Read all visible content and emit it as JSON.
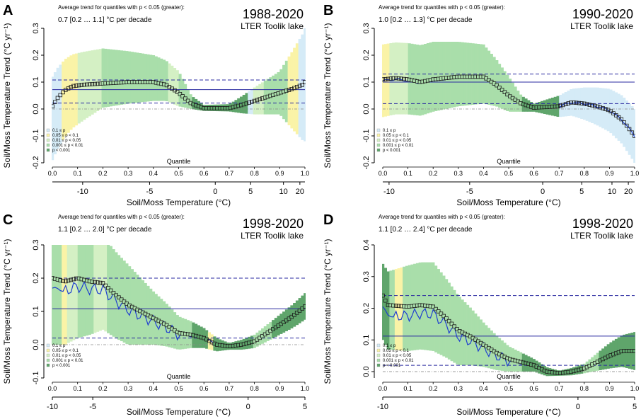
{
  "figure": {
    "legend_labels": [
      "0.1 ≤ p",
      "0.05 ≤ p < 0.1",
      "0.01 ≤ p < 0.05",
      "0.001 ≤ p < 0.01",
      "p < 0.001"
    ],
    "legend_colors": [
      "#d5ebf7",
      "#faf3a7",
      "#d4f0c4",
      "#a9deaa",
      "#5fa56b"
    ],
    "marker_color": "#1a1a1a",
    "line_color": "#1f3fd0",
    "ref_line_color": "#2a2aa0"
  },
  "chart_data": [
    {
      "type": "line",
      "panel": "A",
      "title": "1988-2020",
      "site": "LTER Toolik lake",
      "avg_label": "Average trend for quantiles with p < 0.05 (greater):",
      "avg_value": "0.7  [0.2 … 1.1]  °C per decade",
      "ylabel": "Soil/Moss Temperature Trend (°C yr⁻¹)",
      "xlabel": "Soil/Moss Temperature (°C)",
      "quantile_label": "Quantile",
      "ylim": [
        -0.2,
        0.3
      ],
      "yticks": [
        "-0.2",
        "-0.1",
        "0.0",
        "0.1",
        "0.2",
        "0.3"
      ],
      "quantile_ticks": [
        "0.0",
        "0.1",
        "0.2",
        "0.3",
        "0.4",
        "0.5",
        "0.6",
        "0.7",
        "0.8",
        "0.9",
        "1.0"
      ],
      "temp_ticks": [
        {
          "label": "-10",
          "q": 0.12
        },
        {
          "label": "-5",
          "q": 0.385
        },
        {
          "label": "0",
          "q": 0.645
        },
        {
          "label": "5",
          "q": 0.785
        },
        {
          "label": "10",
          "q": 0.915
        },
        {
          "label": "20",
          "q": 0.98
        }
      ],
      "avg_trend": 0.072,
      "ci_low": 0.022,
      "ci_high": 0.108,
      "anchors": [
        [
          0.0,
          0.01
        ],
        [
          0.02,
          0.04
        ],
        [
          0.05,
          0.07
        ],
        [
          0.08,
          0.085
        ],
        [
          0.12,
          0.09
        ],
        [
          0.2,
          0.095
        ],
        [
          0.3,
          0.1
        ],
        [
          0.4,
          0.1
        ],
        [
          0.45,
          0.09
        ],
        [
          0.5,
          0.06
        ],
        [
          0.55,
          0.02
        ],
        [
          0.6,
          0.003
        ],
        [
          0.7,
          0.003
        ],
        [
          0.75,
          0.015
        ],
        [
          0.8,
          0.03
        ],
        [
          0.85,
          0.045
        ],
        [
          0.9,
          0.06
        ],
        [
          0.95,
          0.075
        ],
        [
          0.99,
          0.09
        ],
        [
          1.0,
          0.1
        ]
      ],
      "band": [
        [
          0.0,
          0.11,
          0.2
        ],
        [
          0.2,
          0.13,
          0.09
        ],
        [
          0.4,
          0.1,
          0.07
        ],
        [
          0.5,
          0.08,
          0.05
        ],
        [
          0.55,
          0.03,
          0.02
        ],
        [
          0.6,
          0.012,
          0.01
        ],
        [
          0.7,
          0.015,
          0.012
        ],
        [
          0.8,
          0.05,
          0.05
        ],
        [
          0.9,
          0.08,
          0.08
        ],
        [
          1.0,
          0.2,
          0.22
        ]
      ],
      "pclass": [
        [
          0.0,
          0
        ],
        [
          0.04,
          1
        ],
        [
          0.1,
          2
        ],
        [
          0.2,
          3
        ],
        [
          0.46,
          2
        ],
        [
          0.5,
          3
        ],
        [
          0.55,
          4
        ],
        [
          0.77,
          0
        ],
        [
          0.8,
          2
        ],
        [
          0.84,
          3
        ],
        [
          0.93,
          1
        ],
        [
          0.97,
          0
        ]
      ],
      "trend_line": false,
      "n": 96
    },
    {
      "type": "line",
      "panel": "B",
      "title": "1990-2020",
      "site": "LTER Toolik lake",
      "avg_label": "Average trend for quantiles with p < 0.05 (greater):",
      "avg_value": "1.0  [0.2 … 1.3]  °C per decade",
      "ylabel": "Soil/Moss Temperature Trend (°C yr⁻¹)",
      "xlabel": "Soil/Moss Temperature (°C)",
      "quantile_label": "Quantile",
      "ylim": [
        -0.2,
        0.3
      ],
      "yticks": [
        "-0.2",
        "-0.1",
        "0.0",
        "0.1",
        "0.2",
        "0.3"
      ],
      "quantile_ticks": [
        "0.0",
        "0.1",
        "0.2",
        "0.3",
        "0.4",
        "0.5",
        "0.6",
        "0.7",
        "0.8",
        "0.9",
        "1.0"
      ],
      "temp_ticks": [
        {
          "label": "-10",
          "q": 0.025
        },
        {
          "label": "-5",
          "q": 0.345
        },
        {
          "label": "0",
          "q": 0.635
        },
        {
          "label": "5",
          "q": 0.79
        },
        {
          "label": "10",
          "q": 0.91
        },
        {
          "label": "20",
          "q": 0.975
        }
      ],
      "avg_trend": 0.1,
      "ci_low": 0.02,
      "ci_high": 0.13,
      "anchors": [
        [
          0.0,
          0.11
        ],
        [
          0.05,
          0.115
        ],
        [
          0.1,
          0.11
        ],
        [
          0.15,
          0.1
        ],
        [
          0.2,
          0.11
        ],
        [
          0.3,
          0.12
        ],
        [
          0.4,
          0.12
        ],
        [
          0.45,
          0.09
        ],
        [
          0.5,
          0.05
        ],
        [
          0.55,
          0.02
        ],
        [
          0.6,
          0.005
        ],
        [
          0.7,
          0.01
        ],
        [
          0.75,
          0.025
        ],
        [
          0.8,
          0.02
        ],
        [
          0.85,
          0.01
        ],
        [
          0.9,
          -0.005
        ],
        [
          0.95,
          -0.04
        ],
        [
          1.0,
          -0.1
        ]
      ],
      "band": [
        [
          0.0,
          0.13,
          0.14
        ],
        [
          0.2,
          0.14,
          0.12
        ],
        [
          0.4,
          0.12,
          0.1
        ],
        [
          0.5,
          0.07,
          0.06
        ],
        [
          0.55,
          0.03,
          0.03
        ],
        [
          0.6,
          0.015,
          0.015
        ],
        [
          0.7,
          0.04,
          0.04
        ],
        [
          0.8,
          0.06,
          0.06
        ],
        [
          0.9,
          0.08,
          0.08
        ],
        [
          1.0,
          0.1,
          0.1
        ]
      ],
      "pclass": [
        [
          0.0,
          1
        ],
        [
          0.03,
          2
        ],
        [
          0.1,
          3
        ],
        [
          0.2,
          3
        ],
        [
          0.35,
          3
        ],
        [
          0.5,
          3
        ],
        [
          0.55,
          4
        ],
        [
          0.62,
          4
        ],
        [
          0.7,
          0
        ]
      ],
      "trend_line": true,
      "line_offset": -0.005,
      "n": 96
    },
    {
      "type": "line",
      "panel": "C",
      "title": "1998-2020",
      "site": "LTER Toolik lake",
      "avg_label": "Average trend for quantiles with p < 0.05 (greater):",
      "avg_value": "1.1  [0.2 … 2.0]  °C per decade",
      "ylabel": "Soil/Moss Temperature Trend (°C yr⁻¹)",
      "xlabel": "Soil/Moss Temperature (°C)",
      "quantile_label": "Quantile",
      "ylim": [
        -0.1,
        0.3
      ],
      "yticks": [
        "-0.1",
        "0.0",
        "0.1",
        "0.2",
        "0.3"
      ],
      "quantile_ticks": [
        "0.0",
        "0.1",
        "0.2",
        "0.3",
        "0.4",
        "0.5",
        "0.6",
        "0.7",
        "0.8",
        "0.9",
        "1.0"
      ],
      "temp_ticks": [
        {
          "label": "-10",
          "q": 0.0
        },
        {
          "label": "-5",
          "q": 0.16
        },
        {
          "label": "0",
          "q": 0.775
        },
        {
          "label": "5",
          "q": 1.0
        }
      ],
      "avg_trend": 0.108,
      "ci_low": 0.02,
      "ci_high": 0.2,
      "anchors": [
        [
          0.0,
          0.2
        ],
        [
          0.05,
          0.19
        ],
        [
          0.1,
          0.2
        ],
        [
          0.15,
          0.19
        ],
        [
          0.2,
          0.185
        ],
        [
          0.25,
          0.15
        ],
        [
          0.3,
          0.12
        ],
        [
          0.35,
          0.1
        ],
        [
          0.4,
          0.08
        ],
        [
          0.45,
          0.06
        ],
        [
          0.5,
          0.035
        ],
        [
          0.55,
          0.03
        ],
        [
          0.6,
          0.02
        ],
        [
          0.65,
          0.0
        ],
        [
          0.7,
          -0.005
        ],
        [
          0.75,
          0.0
        ],
        [
          0.8,
          0.01
        ],
        [
          0.85,
          0.035
        ],
        [
          0.9,
          0.06
        ],
        [
          0.95,
          0.085
        ],
        [
          1.0,
          0.115
        ]
      ],
      "band": [
        [
          0.0,
          0.15,
          0.2
        ],
        [
          0.1,
          0.14,
          0.18
        ],
        [
          0.2,
          0.14,
          0.14
        ],
        [
          0.3,
          0.12,
          0.12
        ],
        [
          0.4,
          0.08,
          0.08
        ],
        [
          0.5,
          0.05,
          0.05
        ],
        [
          0.6,
          0.03,
          0.03
        ],
        [
          0.7,
          0.01,
          0.01
        ],
        [
          0.8,
          0.02,
          0.02
        ],
        [
          0.9,
          0.03,
          0.03
        ],
        [
          1.0,
          0.04,
          0.04
        ]
      ],
      "pclass": [
        [
          0.0,
          3
        ],
        [
          0.04,
          1
        ],
        [
          0.06,
          2
        ],
        [
          0.1,
          3
        ],
        [
          0.16,
          2
        ],
        [
          0.22,
          3
        ],
        [
          0.55,
          4
        ],
        [
          0.62,
          1
        ],
        [
          0.64,
          4
        ],
        [
          0.8,
          3
        ],
        [
          0.87,
          4
        ]
      ],
      "trend_line": true,
      "line_offset": -0.03,
      "n": 96
    },
    {
      "type": "line",
      "panel": "D",
      "title": "1998-2020",
      "site": "LTER Toolik lake",
      "avg_label": "Average trend for quantiles with p < 0.05 (greater):",
      "avg_value": "1.1  [0.2 … 2.4]  °C per decade",
      "ylabel": "Soil/Moss Temperature Trend (°C yr⁻¹)",
      "xlabel": "Soil/Moss Temperature (°C)",
      "quantile_label": "Quantile",
      "ylim": [
        -0.02,
        0.4
      ],
      "yticks": [
        "0.0",
        "0.1",
        "0.2",
        "0.3",
        "0.4"
      ],
      "quantile_ticks": [
        "0.0",
        "0.1",
        "0.2",
        "0.3",
        "0.4",
        "0.5",
        "0.6",
        "0.7",
        "0.8",
        "0.9",
        "1.0"
      ],
      "temp_ticks": [
        {
          "label": "-10",
          "q": 0.0
        },
        {
          "label": "0",
          "q": 0.775
        },
        {
          "label": "5",
          "q": 1.0
        }
      ],
      "avg_trend": 0.112,
      "ci_low": 0.02,
      "ci_high": 0.24,
      "anchors": [
        [
          0.0,
          0.24
        ],
        [
          0.02,
          0.21
        ],
        [
          0.1,
          0.205
        ],
        [
          0.15,
          0.21
        ],
        [
          0.2,
          0.205
        ],
        [
          0.25,
          0.17
        ],
        [
          0.3,
          0.13
        ],
        [
          0.35,
          0.11
        ],
        [
          0.4,
          0.085
        ],
        [
          0.45,
          0.06
        ],
        [
          0.5,
          0.04
        ],
        [
          0.55,
          0.03
        ],
        [
          0.6,
          0.02
        ],
        [
          0.65,
          0.0
        ],
        [
          0.7,
          -0.005
        ],
        [
          0.75,
          0.0
        ],
        [
          0.8,
          0.01
        ],
        [
          0.85,
          0.03
        ],
        [
          0.9,
          0.05
        ],
        [
          0.95,
          0.065
        ],
        [
          1.0,
          0.065
        ]
      ],
      "band": [
        [
          0.0,
          0.1,
          0.14
        ],
        [
          0.1,
          0.13,
          0.14
        ],
        [
          0.2,
          0.14,
          0.14
        ],
        [
          0.3,
          0.11,
          0.11
        ],
        [
          0.4,
          0.07,
          0.07
        ],
        [
          0.5,
          0.04,
          0.04
        ],
        [
          0.6,
          0.02,
          0.02
        ],
        [
          0.7,
          0.008,
          0.008
        ],
        [
          0.8,
          0.015,
          0.015
        ],
        [
          0.9,
          0.04,
          0.04
        ],
        [
          1.0,
          0.06,
          0.06
        ]
      ],
      "pclass": [
        [
          0.0,
          4
        ],
        [
          0.03,
          3
        ],
        [
          0.05,
          1
        ],
        [
          0.08,
          3
        ],
        [
          0.55,
          4
        ],
        [
          0.63,
          4
        ],
        [
          0.8,
          3
        ],
        [
          0.86,
          4
        ]
      ],
      "trend_line": true,
      "line_offset": -0.035,
      "n": 96
    }
  ]
}
